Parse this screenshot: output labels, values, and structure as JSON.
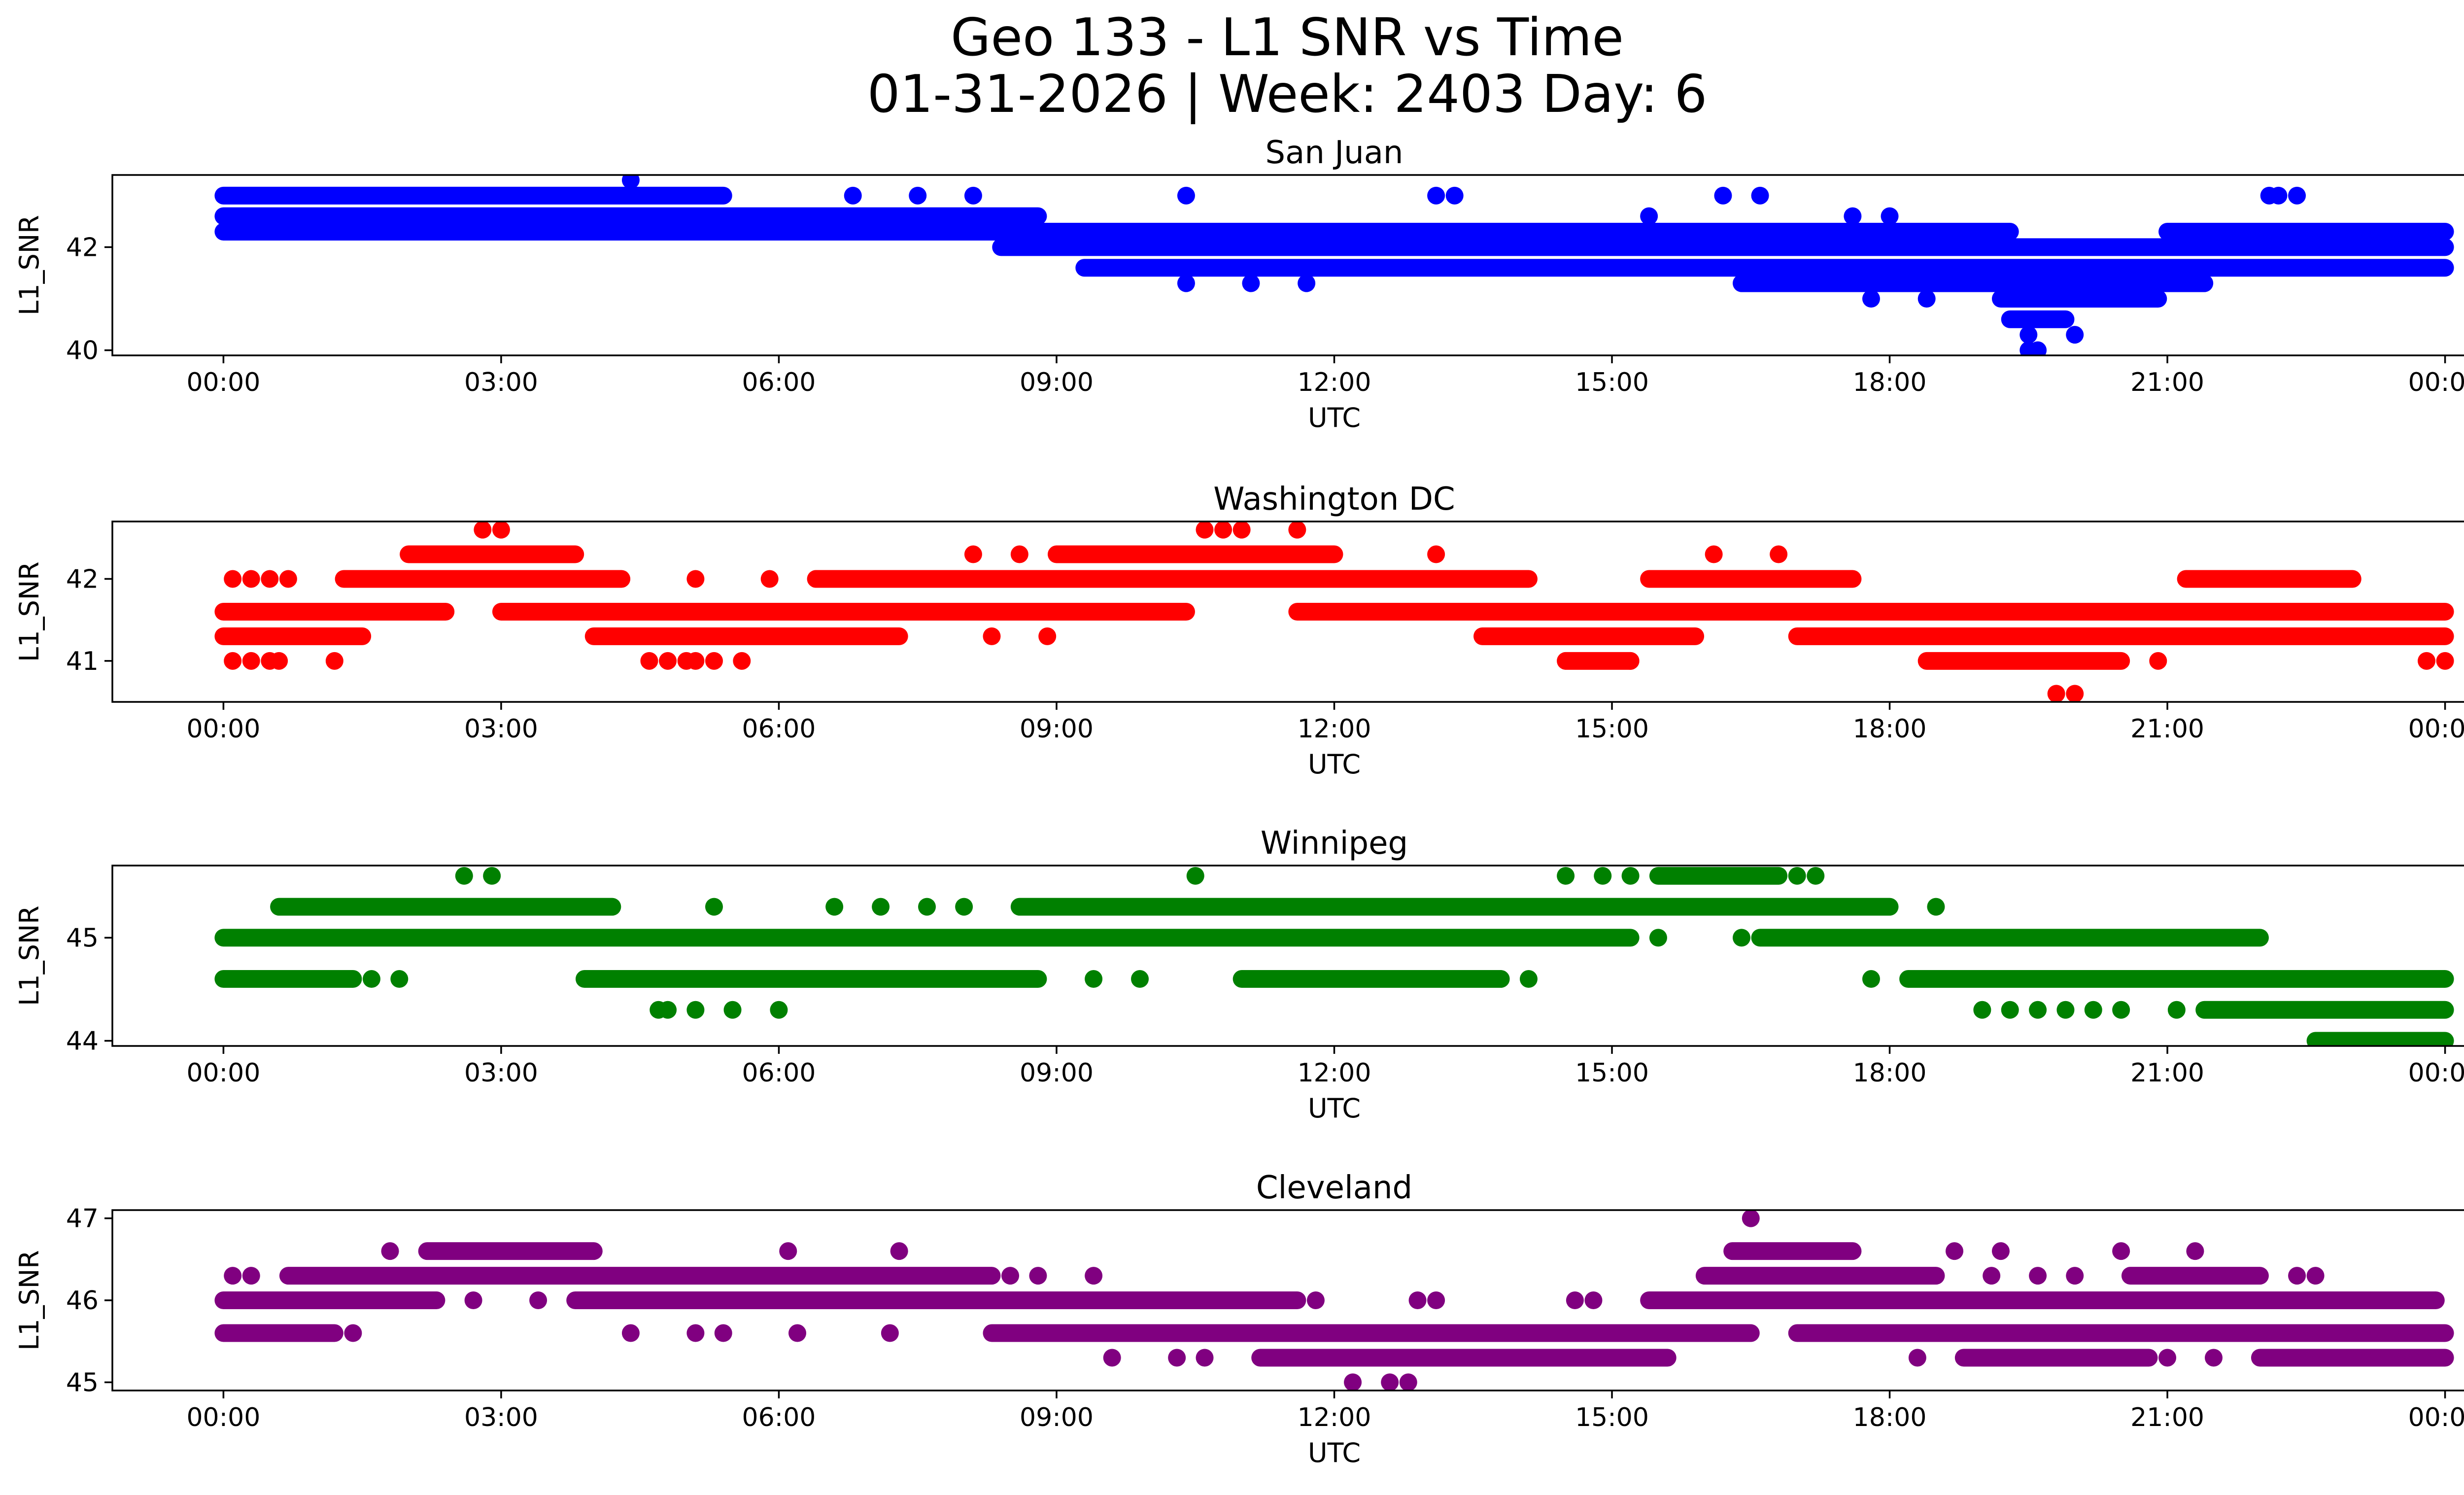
{
  "title_line1": "Geo 133 - L1 SNR vs Time",
  "title_line2": "01-31-2026 | Week: 2403 Day: 6",
  "chart_data": [
    {
      "type": "scatter",
      "title": "San Juan",
      "xlabel": "UTC",
      "ylabel": "L1_SNR",
      "color": "#0000ff",
      "xlim": [
        -1.2,
        25.2
      ],
      "ylim": [
        39.9,
        43.4
      ],
      "yticks": [
        40,
        42
      ],
      "xticks": [
        0,
        3,
        6,
        9,
        12,
        15,
        18,
        21,
        24
      ],
      "xtick_labels": [
        "00:00",
        "03:00",
        "06:00",
        "09:00",
        "12:00",
        "15:00",
        "18:00",
        "21:00",
        "00:00"
      ],
      "segments": [
        {
          "y": 43.0,
          "x": [
            0.0,
            5.4
          ]
        },
        {
          "y": 42.6,
          "x": [
            0.0,
            8.8
          ]
        },
        {
          "y": 42.3,
          "x": [
            0.0,
            19.3
          ]
        },
        {
          "y": 42.3,
          "x": [
            21.0,
            24.0
          ]
        },
        {
          "y": 42.0,
          "x": [
            8.4,
            24.0
          ]
        },
        {
          "y": 41.6,
          "x": [
            9.3,
            24.0
          ]
        },
        {
          "y": 41.3,
          "x": [
            16.4,
            21.4
          ]
        },
        {
          "y": 41.0,
          "x": [
            19.2,
            20.9
          ]
        },
        {
          "y": 40.6,
          "x": [
            19.3,
            19.9
          ]
        }
      ],
      "points": [
        {
          "x": 4.4,
          "y": 43.3
        },
        {
          "x": 19.5,
          "y": 40.3
        },
        {
          "x": 19.5,
          "y": 40.0
        },
        {
          "x": 19.6,
          "y": 40.0
        },
        {
          "x": 20.0,
          "y": 40.3
        },
        {
          "x": 10.4,
          "y": 43.0
        },
        {
          "x": 13.1,
          "y": 43.0
        },
        {
          "x": 13.3,
          "y": 43.0
        },
        {
          "x": 16.2,
          "y": 43.0
        },
        {
          "x": 16.6,
          "y": 43.0
        },
        {
          "x": 22.1,
          "y": 43.0
        },
        {
          "x": 22.2,
          "y": 43.0
        },
        {
          "x": 22.4,
          "y": 43.0
        },
        {
          "x": 8.1,
          "y": 43.0
        },
        {
          "x": 6.8,
          "y": 43.0
        },
        {
          "x": 7.5,
          "y": 43.0
        },
        {
          "x": 10.4,
          "y": 41.3
        },
        {
          "x": 11.1,
          "y": 41.3
        },
        {
          "x": 11.7,
          "y": 41.3
        },
        {
          "x": 17.8,
          "y": 41.0
        },
        {
          "x": 18.4,
          "y": 41.0
        },
        {
          "x": 15.4,
          "y": 42.6
        },
        {
          "x": 17.6,
          "y": 42.6
        },
        {
          "x": 18.0,
          "y": 42.6
        }
      ]
    },
    {
      "type": "scatter",
      "title": "Washington DC",
      "xlabel": "UTC",
      "ylabel": "L1_SNR",
      "color": "#ff0000",
      "xlim": [
        -1.2,
        25.2
      ],
      "ylim": [
        40.5,
        42.7
      ],
      "yticks": [
        41,
        42
      ],
      "xticks": [
        0,
        3,
        6,
        9,
        12,
        15,
        18,
        21,
        24
      ],
      "xtick_labels": [
        "00:00",
        "03:00",
        "06:00",
        "09:00",
        "12:00",
        "15:00",
        "18:00",
        "21:00",
        "00:00"
      ],
      "segments": [
        {
          "y": 42.3,
          "x": [
            2.0,
            3.8
          ]
        },
        {
          "y": 42.3,
          "x": [
            9.0,
            12.0
          ]
        },
        {
          "y": 42.0,
          "x": [
            1.3,
            4.3
          ]
        },
        {
          "y": 42.0,
          "x": [
            6.4,
            14.1
          ]
        },
        {
          "y": 42.0,
          "x": [
            15.4,
            17.6
          ]
        },
        {
          "y": 42.0,
          "x": [
            21.2,
            23.0
          ]
        },
        {
          "y": 41.6,
          "x": [
            0.0,
            2.4
          ]
        },
        {
          "y": 41.6,
          "x": [
            3.0,
            10.4
          ]
        },
        {
          "y": 41.6,
          "x": [
            11.6,
            24.0
          ]
        },
        {
          "y": 41.3,
          "x": [
            0.0,
            1.5
          ]
        },
        {
          "y": 41.3,
          "x": [
            4.0,
            7.3
          ]
        },
        {
          "y": 41.3,
          "x": [
            13.6,
            15.9
          ]
        },
        {
          "y": 41.3,
          "x": [
            17.0,
            24.0
          ]
        },
        {
          "y": 41.0,
          "x": [
            14.5,
            15.2
          ]
        },
        {
          "y": 41.0,
          "x": [
            18.4,
            20.5
          ]
        }
      ],
      "points": [
        {
          "x": 2.8,
          "y": 42.6
        },
        {
          "x": 3.0,
          "y": 42.6
        },
        {
          "x": 10.6,
          "y": 42.6
        },
        {
          "x": 10.8,
          "y": 42.6
        },
        {
          "x": 11.0,
          "y": 42.6
        },
        {
          "x": 11.6,
          "y": 42.6
        },
        {
          "x": 19.8,
          "y": 40.6
        },
        {
          "x": 20.0,
          "y": 40.6
        },
        {
          "x": 0.1,
          "y": 41.0
        },
        {
          "x": 0.3,
          "y": 41.0
        },
        {
          "x": 0.5,
          "y": 41.0
        },
        {
          "x": 0.6,
          "y": 41.0
        },
        {
          "x": 1.2,
          "y": 41.0
        },
        {
          "x": 4.6,
          "y": 41.0
        },
        {
          "x": 4.8,
          "y": 41.0
        },
        {
          "x": 5.0,
          "y": 41.0
        },
        {
          "x": 5.1,
          "y": 41.0
        },
        {
          "x": 5.3,
          "y": 41.0
        },
        {
          "x": 5.6,
          "y": 41.0
        },
        {
          "x": 23.8,
          "y": 41.0
        },
        {
          "x": 24.0,
          "y": 41.0
        },
        {
          "x": 0.1,
          "y": 42.0
        },
        {
          "x": 0.3,
          "y": 42.0
        },
        {
          "x": 0.5,
          "y": 42.0
        },
        {
          "x": 0.7,
          "y": 42.0
        },
        {
          "x": 5.1,
          "y": 42.0
        },
        {
          "x": 5.9,
          "y": 42.0
        },
        {
          "x": 8.1,
          "y": 42.3
        },
        {
          "x": 8.6,
          "y": 42.3
        },
        {
          "x": 13.1,
          "y": 42.3
        },
        {
          "x": 16.1,
          "y": 42.3
        },
        {
          "x": 16.8,
          "y": 42.3
        },
        {
          "x": 8.3,
          "y": 41.3
        },
        {
          "x": 8.9,
          "y": 41.3
        },
        {
          "x": 15.2,
          "y": 41.0
        },
        {
          "x": 20.9,
          "y": 41.0
        }
      ]
    },
    {
      "type": "scatter",
      "title": "Winnipeg",
      "xlabel": "UTC",
      "ylabel": "L1_SNR",
      "color": "#008000",
      "xlim": [
        -1.2,
        25.2
      ],
      "ylim": [
        43.95,
        45.7
      ],
      "yticks": [
        44,
        45
      ],
      "xticks": [
        0,
        3,
        6,
        9,
        12,
        15,
        18,
        21,
        24
      ],
      "xtick_labels": [
        "00:00",
        "03:00",
        "06:00",
        "09:00",
        "12:00",
        "15:00",
        "18:00",
        "21:00",
        "00:00"
      ],
      "segments": [
        {
          "y": 45.3,
          "x": [
            0.6,
            4.2
          ]
        },
        {
          "y": 45.3,
          "x": [
            8.6,
            18.0
          ]
        },
        {
          "y": 45.0,
          "x": [
            0.0,
            15.2
          ]
        },
        {
          "y": 45.0,
          "x": [
            16.6,
            22.0
          ]
        },
        {
          "y": 44.6,
          "x": [
            0.0,
            1.4
          ]
        },
        {
          "y": 44.6,
          "x": [
            3.9,
            8.8
          ]
        },
        {
          "y": 44.6,
          "x": [
            11.0,
            13.8
          ]
        },
        {
          "y": 44.6,
          "x": [
            18.2,
            24.0
          ]
        },
        {
          "y": 44.3,
          "x": [
            21.4,
            24.0
          ]
        },
        {
          "y": 44.0,
          "x": [
            22.6,
            24.0
          ]
        },
        {
          "y": 45.6,
          "x": [
            15.5,
            16.8
          ]
        }
      ],
      "points": [
        {
          "x": 2.6,
          "y": 45.6
        },
        {
          "x": 2.9,
          "y": 45.6
        },
        {
          "x": 10.5,
          "y": 45.6
        },
        {
          "x": 14.5,
          "y": 45.6
        },
        {
          "x": 14.9,
          "y": 45.6
        },
        {
          "x": 15.2,
          "y": 45.6
        },
        {
          "x": 17.0,
          "y": 45.6
        },
        {
          "x": 17.2,
          "y": 45.6
        },
        {
          "x": 4.7,
          "y": 44.3
        },
        {
          "x": 4.8,
          "y": 44.3
        },
        {
          "x": 5.1,
          "y": 44.3
        },
        {
          "x": 5.5,
          "y": 44.3
        },
        {
          "x": 6.0,
          "y": 44.3
        },
        {
          "x": 19.0,
          "y": 44.3
        },
        {
          "x": 19.3,
          "y": 44.3
        },
        {
          "x": 19.6,
          "y": 44.3
        },
        {
          "x": 19.9,
          "y": 44.3
        },
        {
          "x": 20.2,
          "y": 44.3
        },
        {
          "x": 20.5,
          "y": 44.3
        },
        {
          "x": 21.1,
          "y": 44.3
        },
        {
          "x": 5.3,
          "y": 45.3
        },
        {
          "x": 6.6,
          "y": 45.3
        },
        {
          "x": 7.1,
          "y": 45.3
        },
        {
          "x": 7.6,
          "y": 45.3
        },
        {
          "x": 8.0,
          "y": 45.3
        },
        {
          "x": 18.5,
          "y": 45.3
        },
        {
          "x": 15.5,
          "y": 45.0
        },
        {
          "x": 16.4,
          "y": 45.0
        },
        {
          "x": 1.6,
          "y": 44.6
        },
        {
          "x": 1.9,
          "y": 44.6
        },
        {
          "x": 9.4,
          "y": 44.6
        },
        {
          "x": 9.9,
          "y": 44.6
        },
        {
          "x": 14.1,
          "y": 44.6
        },
        {
          "x": 17.8,
          "y": 44.6
        }
      ]
    },
    {
      "type": "scatter",
      "title": "Cleveland",
      "xlabel": "UTC",
      "ylabel": "L1_SNR",
      "color": "#800080",
      "xlim": [
        -1.2,
        25.2
      ],
      "ylim": [
        44.9,
        47.1
      ],
      "yticks": [
        45,
        46,
        47
      ],
      "xticks": [
        0,
        3,
        6,
        9,
        12,
        15,
        18,
        21,
        24
      ],
      "xtick_labels": [
        "00:00",
        "03:00",
        "06:00",
        "09:00",
        "12:00",
        "15:00",
        "18:00",
        "21:00",
        "00:00"
      ],
      "segments": [
        {
          "y": 46.6,
          "x": [
            2.2,
            4.0
          ]
        },
        {
          "y": 46.6,
          "x": [
            16.3,
            17.6
          ]
        },
        {
          "y": 46.3,
          "x": [
            0.7,
            8.3
          ]
        },
        {
          "y": 46.3,
          "x": [
            16.0,
            18.5
          ]
        },
        {
          "y": 46.3,
          "x": [
            20.6,
            22.0
          ]
        },
        {
          "y": 46.0,
          "x": [
            0.0,
            2.3
          ]
        },
        {
          "y": 46.0,
          "x": [
            3.8,
            11.6
          ]
        },
        {
          "y": 46.0,
          "x": [
            15.4,
            23.9
          ]
        },
        {
          "y": 45.6,
          "x": [
            0.0,
            1.2
          ]
        },
        {
          "y": 45.6,
          "x": [
            8.3,
            16.5
          ]
        },
        {
          "y": 45.6,
          "x": [
            17.0,
            24.0
          ]
        },
        {
          "y": 45.3,
          "x": [
            11.2,
            15.6
          ]
        },
        {
          "y": 45.3,
          "x": [
            18.8,
            20.8
          ]
        },
        {
          "y": 45.3,
          "x": [
            22.0,
            24.0
          ]
        }
      ],
      "points": [
        {
          "x": 16.5,
          "y": 47.0
        },
        {
          "x": 12.2,
          "y": 45.0
        },
        {
          "x": 12.6,
          "y": 45.0
        },
        {
          "x": 12.8,
          "y": 45.0
        },
        {
          "x": 0.1,
          "y": 46.3
        },
        {
          "x": 0.3,
          "y": 46.3
        },
        {
          "x": 8.5,
          "y": 46.3
        },
        {
          "x": 8.8,
          "y": 46.3
        },
        {
          "x": 9.4,
          "y": 46.3
        },
        {
          "x": 19.1,
          "y": 46.3
        },
        {
          "x": 19.6,
          "y": 46.3
        },
        {
          "x": 20.0,
          "y": 46.3
        },
        {
          "x": 22.4,
          "y": 46.3
        },
        {
          "x": 22.6,
          "y": 46.3
        },
        {
          "x": 1.8,
          "y": 46.6
        },
        {
          "x": 6.1,
          "y": 46.6
        },
        {
          "x": 7.3,
          "y": 46.6
        },
        {
          "x": 18.7,
          "y": 46.6
        },
        {
          "x": 19.2,
          "y": 46.6
        },
        {
          "x": 20.5,
          "y": 46.6
        },
        {
          "x": 21.3,
          "y": 46.6
        },
        {
          "x": 2.7,
          "y": 46.0
        },
        {
          "x": 3.4,
          "y": 46.0
        },
        {
          "x": 11.8,
          "y": 46.0
        },
        {
          "x": 12.9,
          "y": 46.0
        },
        {
          "x": 13.1,
          "y": 46.0
        },
        {
          "x": 14.6,
          "y": 46.0
        },
        {
          "x": 14.8,
          "y": 46.0
        },
        {
          "x": 4.4,
          "y": 45.6
        },
        {
          "x": 5.1,
          "y": 45.6
        },
        {
          "x": 5.4,
          "y": 45.6
        },
        {
          "x": 6.2,
          "y": 45.6
        },
        {
          "x": 7.2,
          "y": 45.6
        },
        {
          "x": 9.6,
          "y": 45.3
        },
        {
          "x": 10.3,
          "y": 45.3
        },
        {
          "x": 10.6,
          "y": 45.3
        },
        {
          "x": 18.3,
          "y": 45.3
        },
        {
          "x": 21.0,
          "y": 45.3
        },
        {
          "x": 21.5,
          "y": 45.3
        },
        {
          "x": 1.4,
          "y": 45.6
        }
      ]
    }
  ]
}
